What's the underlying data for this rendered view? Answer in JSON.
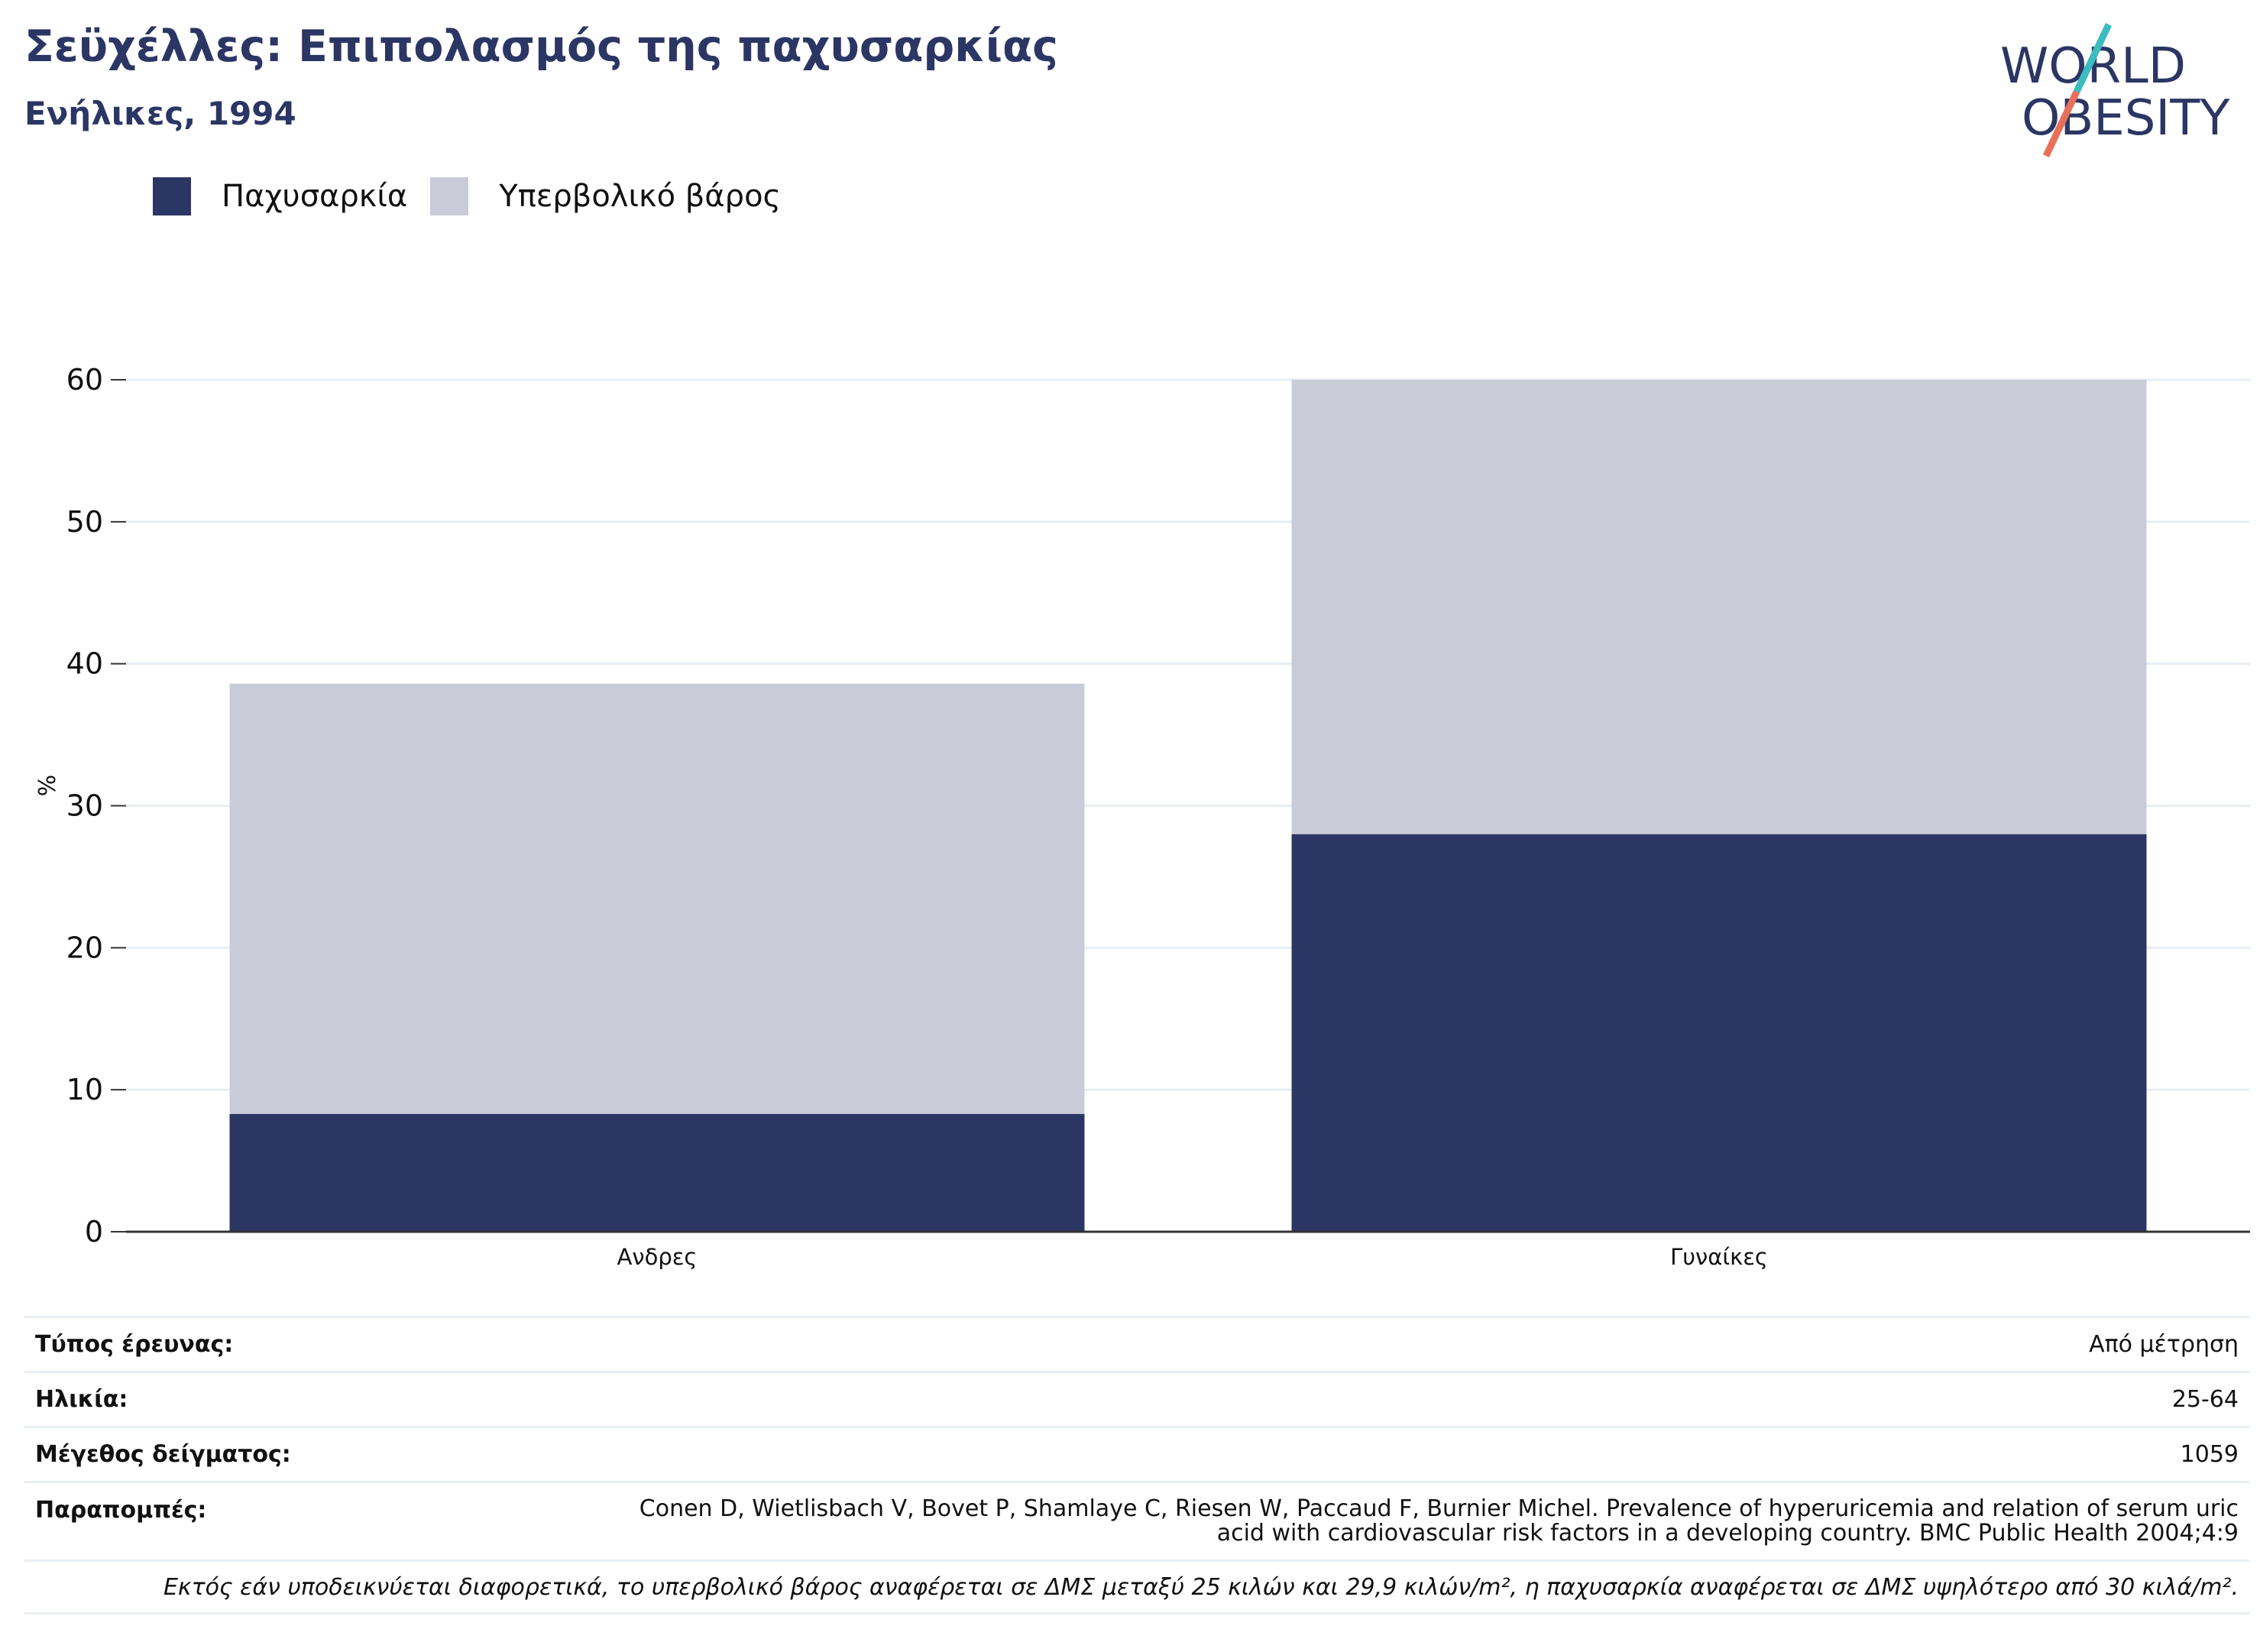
{
  "header": {
    "title": "Σεϋχέλλες: Επιπολασμός της παχυσαρκίας",
    "subtitle": "Ενήλικες, 1994"
  },
  "logo": {
    "line1": "WORLD",
    "line2": "OBESITY",
    "colors": {
      "text": "#2b3664",
      "slash_top": "#3bbdc0",
      "slash_bottom": "#e8705a"
    }
  },
  "colors": {
    "obesity": "#2b3664",
    "overweight": "#cacbd8",
    "title": "#2b3664",
    "gridline": "#e8eef4"
  },
  "chart_data": {
    "type": "bar",
    "stacked": true,
    "categories": [
      "Ανδρες",
      "Γυναίκες"
    ],
    "series": [
      {
        "name": "Παχυσαρκία",
        "values": [
          8.3,
          28.0
        ]
      },
      {
        "name": "Υπερβολικό βάρος",
        "values": [
          30.3,
          32.0
        ]
      }
    ],
    "xlabel": "",
    "ylabel": "%",
    "ylim": [
      0,
      60
    ],
    "yticks": [
      0,
      10,
      20,
      30,
      40,
      50,
      60
    ],
    "grid": true,
    "legend_position": "top-left"
  },
  "info": {
    "survey_type_label": "Τύπος έρευνας:",
    "survey_type_value": "Από μέτρηση",
    "age_label": "Ηλικία:",
    "age_value": "25-64",
    "sample_size_label": "Μέγεθος δείγματος:",
    "sample_size_value": "1059",
    "references_label": "Παραπομπές:",
    "references_value": "Conen D, Wietlisbach V, Bovet P, Shamlaye C, Riesen W, Paccaud F, Burnier Michel. Prevalence of hyperuricemia and relation of serum uric acid with cardiovascular risk factors in a developing country. BMC Public Health 2004;4:9",
    "note": "Εκτός εάν υποδεικνύεται διαφορετικά, το υπερβολικό βάρος αναφέρεται σε ΔΜΣ μεταξύ 25 κιλών και 29,9 κιλών/m², η παχυσαρκία αναφέρεται σε ΔΜΣ υψηλότερο από 30 κιλά/m²."
  }
}
